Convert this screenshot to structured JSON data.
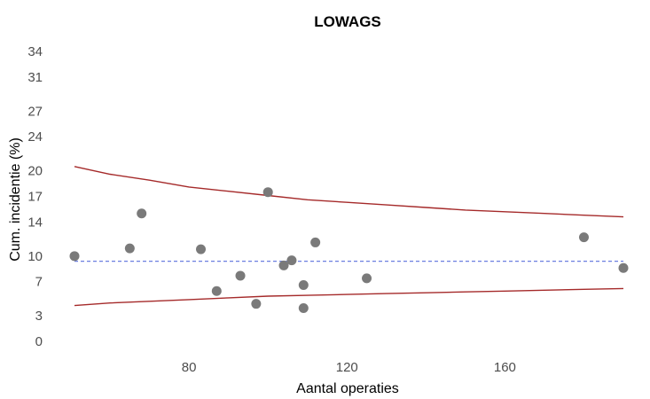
{
  "chart_data": {
    "type": "scatter",
    "title": "LOWAGS",
    "xlabel": "Aantal operaties",
    "ylabel": "Cum. incidentie (%)",
    "xlim": [
      45,
      190
    ],
    "ylim": [
      0,
      34
    ],
    "x_ticks": [
      80,
      120,
      160
    ],
    "y_ticks": [
      0,
      3,
      7,
      10,
      14,
      17,
      20,
      24,
      27,
      31,
      34
    ],
    "grid": false,
    "legend": "none",
    "points": [
      {
        "x": 51,
        "y": 10.0
      },
      {
        "x": 65,
        "y": 10.9
      },
      {
        "x": 68,
        "y": 15.0
      },
      {
        "x": 83,
        "y": 10.8
      },
      {
        "x": 87,
        "y": 5.9
      },
      {
        "x": 93,
        "y": 7.7
      },
      {
        "x": 97,
        "y": 4.4
      },
      {
        "x": 100,
        "y": 17.5
      },
      {
        "x": 104,
        "y": 8.9
      },
      {
        "x": 106,
        "y": 9.5
      },
      {
        "x": 109,
        "y": 6.6
      },
      {
        "x": 109,
        "y": 3.9
      },
      {
        "x": 112,
        "y": 11.6
      },
      {
        "x": 125,
        "y": 7.4
      },
      {
        "x": 180,
        "y": 12.2
      },
      {
        "x": 190,
        "y": 8.6
      }
    ],
    "reference_line": {
      "y": 9.4,
      "style": "dashed",
      "color": "#6b7fe0"
    },
    "upper_limit": [
      {
        "x": 51,
        "y": 20.5
      },
      {
        "x": 60,
        "y": 19.6
      },
      {
        "x": 70,
        "y": 18.9
      },
      {
        "x": 80,
        "y": 18.1
      },
      {
        "x": 90,
        "y": 17.6
      },
      {
        "x": 100,
        "y": 17.1
      },
      {
        "x": 110,
        "y": 16.6
      },
      {
        "x": 120,
        "y": 16.3
      },
      {
        "x": 130,
        "y": 16.0
      },
      {
        "x": 140,
        "y": 15.7
      },
      {
        "x": 150,
        "y": 15.4
      },
      {
        "x": 160,
        "y": 15.2
      },
      {
        "x": 170,
        "y": 15.0
      },
      {
        "x": 180,
        "y": 14.8
      },
      {
        "x": 190,
        "y": 14.6
      }
    ],
    "lower_limit": [
      {
        "x": 51,
        "y": 4.2
      },
      {
        "x": 60,
        "y": 4.5
      },
      {
        "x": 70,
        "y": 4.7
      },
      {
        "x": 80,
        "y": 4.9
      },
      {
        "x": 90,
        "y": 5.1
      },
      {
        "x": 100,
        "y": 5.3
      },
      {
        "x": 110,
        "y": 5.4
      },
      {
        "x": 120,
        "y": 5.5
      },
      {
        "x": 130,
        "y": 5.6
      },
      {
        "x": 140,
        "y": 5.7
      },
      {
        "x": 150,
        "y": 5.8
      },
      {
        "x": 160,
        "y": 5.9
      },
      {
        "x": 170,
        "y": 6.0
      },
      {
        "x": 180,
        "y": 6.1
      },
      {
        "x": 190,
        "y": 6.2
      }
    ],
    "colors": {
      "points": "#7a7a7a",
      "limits": "#a52a2a",
      "reference": "#6b7fe0"
    }
  }
}
